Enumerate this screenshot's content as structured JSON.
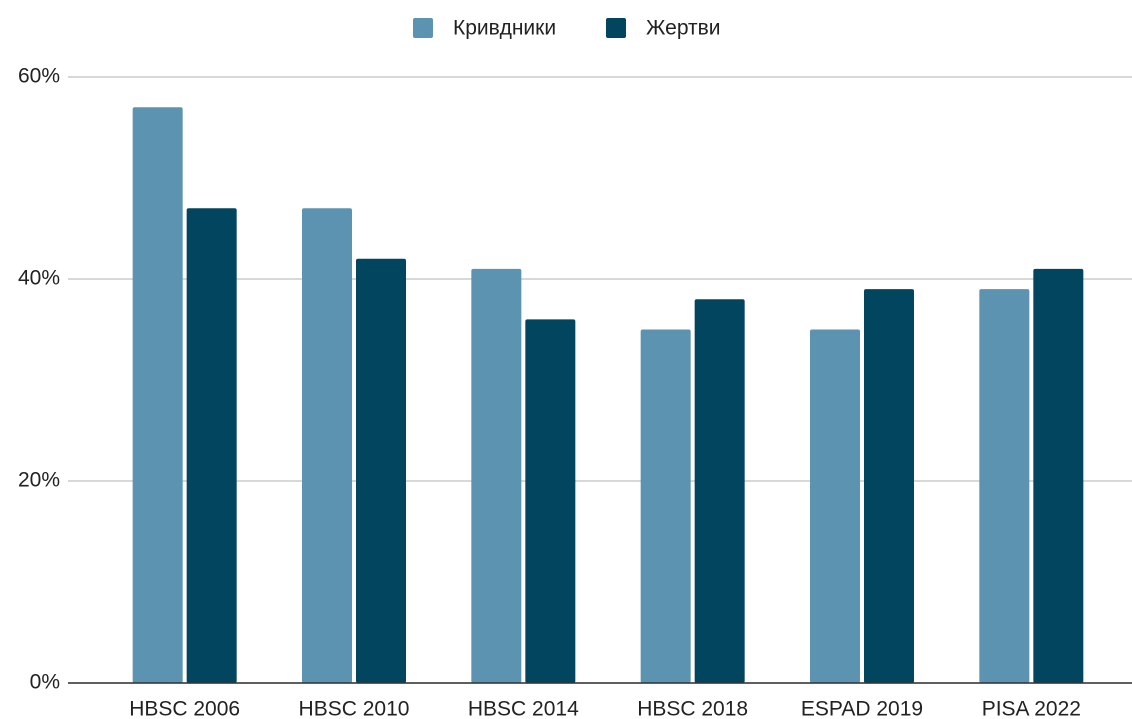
{
  "chart_data": {
    "type": "bar",
    "categories": [
      "HBSC 2006",
      "HBSC 2010",
      "HBSC 2014",
      "HBSC 2018",
      "ESPAD 2019",
      "PISA 2022"
    ],
    "series": [
      {
        "name": "Кривдники",
        "color": "#5b93b0",
        "values": [
          57,
          47,
          41,
          35,
          35,
          39
        ]
      },
      {
        "name": "Жертви",
        "color": "#02455f",
        "values": [
          47,
          42,
          36,
          38,
          39,
          41
        ]
      }
    ],
    "ylim": [
      0,
      60
    ],
    "yticks": [
      {
        "value": 0,
        "label": "0%"
      },
      {
        "value": 20,
        "label": "20%"
      },
      {
        "value": 40,
        "label": "40%"
      },
      {
        "value": 60,
        "label": "60%"
      }
    ],
    "grid": true,
    "legend": "top"
  }
}
